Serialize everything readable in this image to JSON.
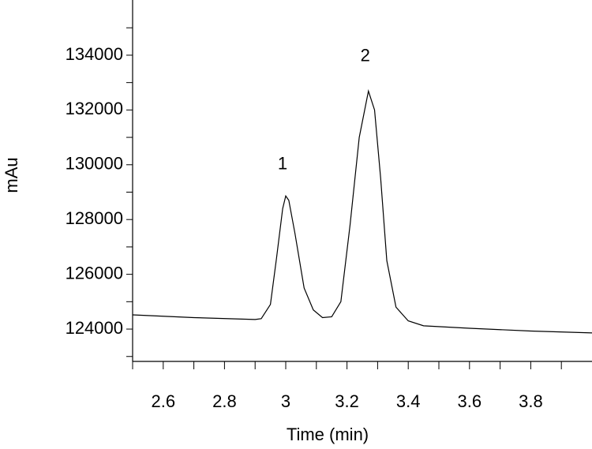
{
  "chart_data": {
    "type": "line",
    "x_label": "Time (min)",
    "y_label": "mAu",
    "x": [
      2.5,
      2.7,
      2.9,
      2.92,
      2.95,
      2.97,
      2.99,
      3.0,
      3.01,
      3.03,
      3.06,
      3.09,
      3.12,
      3.15,
      3.18,
      3.21,
      3.24,
      3.27,
      3.29,
      3.31,
      3.33,
      3.36,
      3.4,
      3.45,
      3.6,
      3.8,
      4.0
    ],
    "series": [
      {
        "color": "#000000",
        "values": [
          124520,
          124420,
          124350,
          124380,
          124900,
          126600,
          128400,
          128860,
          128700,
          127500,
          125500,
          124700,
          124420,
          124450,
          125000,
          127800,
          131000,
          132690,
          132000,
          129500,
          126500,
          124800,
          124300,
          124120,
          124030,
          123930,
          123860
        ]
      }
    ],
    "annotations": [
      {
        "text": "1",
        "x": 3.0,
        "y": 130000
      },
      {
        "text": "2",
        "x": 3.27,
        "y": 133950
      }
    ],
    "xlim": [
      2.5,
      4.0
    ],
    "ylim": [
      122820,
      136015
    ],
    "xticks": [
      2.6,
      2.8,
      3.0,
      3.2,
      3.4,
      3.6,
      3.8
    ],
    "yticks": [
      124000,
      126000,
      128000,
      130000,
      132000,
      134000
    ],
    "xminorticks": [
      2.5,
      2.7,
      2.9,
      3.1,
      3.3,
      3.5,
      3.7,
      3.9
    ],
    "yminorticks": [
      123000,
      125000,
      127000,
      129000,
      131000,
      133000,
      135000
    ]
  }
}
